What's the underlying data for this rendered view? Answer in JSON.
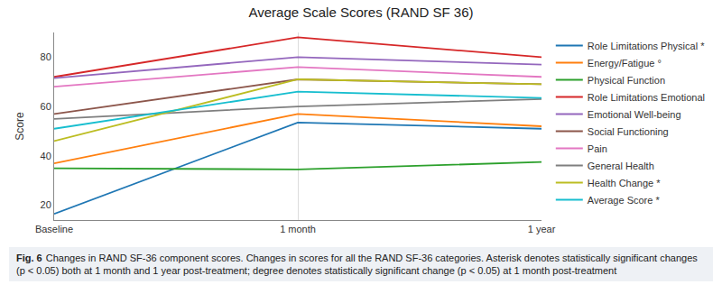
{
  "chart_data": {
    "type": "line",
    "title": "Average Scale Scores (RAND SF 36)",
    "y_label": "Score",
    "categories": [
      "Baseline",
      "1 month",
      "1 year"
    ],
    "series": [
      {
        "name": "Role Limitations Physical *",
        "color": "#1f77b4",
        "values": [
          16.5,
          53.5,
          51
        ]
      },
      {
        "name": "Energy/Fatigue °",
        "color": "#ff7f0e",
        "values": [
          37,
          57,
          52
        ]
      },
      {
        "name": "Physical Function",
        "color": "#2ca02c",
        "values": [
          35,
          34.5,
          37.5
        ]
      },
      {
        "name": "Role Limitations Emotional",
        "color": "#d62728",
        "values": [
          72,
          88,
          80
        ]
      },
      {
        "name": "Emotional Well-being",
        "color": "#9467bd",
        "values": [
          71.5,
          80,
          77
        ]
      },
      {
        "name": "Social Functioning",
        "color": "#8c564b",
        "values": [
          57,
          71,
          69
        ]
      },
      {
        "name": "Pain",
        "color": "#e377c2",
        "values": [
          68,
          76,
          72
        ]
      },
      {
        "name": "General Health",
        "color": "#7f7f7f",
        "values": [
          55,
          60,
          63
        ]
      },
      {
        "name": "Health Change *",
        "color": "#bcbd22",
        "values": [
          46,
          71,
          69
        ]
      },
      {
        "name": "Average Score *",
        "color": "#17becf",
        "values": [
          51,
          66,
          63.5
        ]
      }
    ],
    "ylim": [
      14,
      90
    ],
    "yticks": [
      20,
      40,
      60,
      80
    ],
    "grid": "x",
    "legend": "right",
    "caption_label": "Fig. 6",
    "caption": "Changes in RAND SF-36 component scores. Changes in scores for all the RAND SF-36 categories. Asterisk denotes statistically significant changes (p < 0.05) both at 1 month and 1 year post-treatment; degree denotes statistically significant change (p < 0.05) at 1 month post-treatment"
  }
}
